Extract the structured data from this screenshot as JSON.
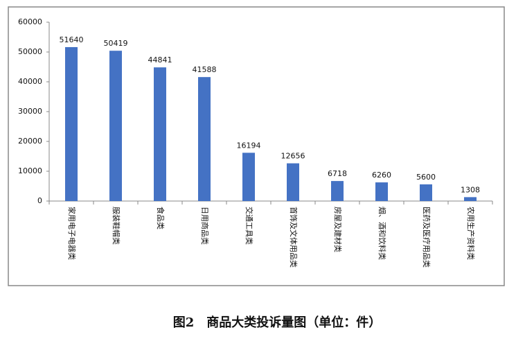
{
  "chart_data": {
    "type": "bar",
    "title": "图2　商品大类投诉量图（单位：件）",
    "categories": [
      "家用电子电器类",
      "服装鞋帽类",
      "食品类",
      "日用商品类",
      "交通工具类",
      "首饰及文体用品类",
      "房屋及建材类",
      "烟、酒和饮料类",
      "医药及医疗用品类",
      "农用生产资料类"
    ],
    "values": [
      51640,
      50419,
      44841,
      41588,
      16194,
      12656,
      6718,
      6260,
      5600,
      1308
    ],
    "color": "#4472c4",
    "ylim": [
      0,
      60000
    ],
    "yticks": [
      0,
      10000,
      20000,
      30000,
      40000,
      50000,
      60000
    ],
    "grid": false
  }
}
